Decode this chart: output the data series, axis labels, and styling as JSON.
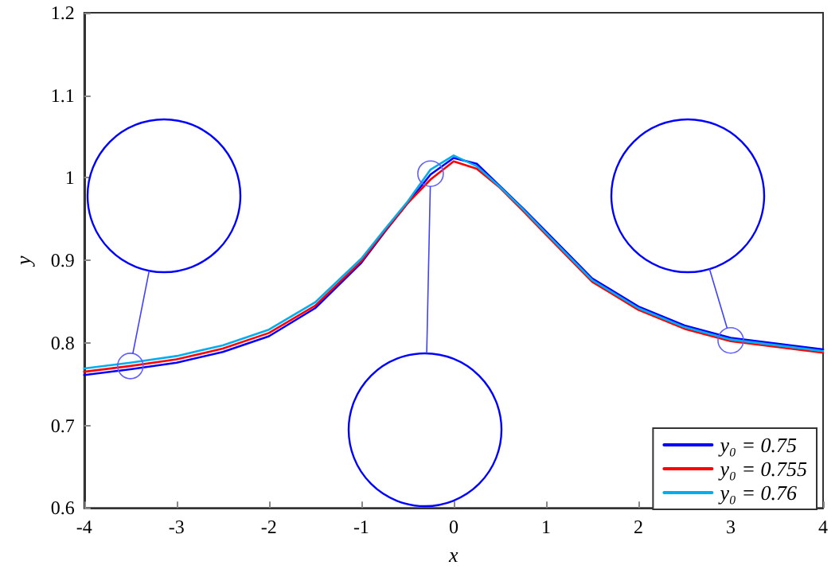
{
  "chart_data": {
    "type": "line",
    "xlabel": "x",
    "ylabel": "y",
    "x": [
      -4,
      -3.5,
      -3,
      -2.5,
      -2,
      -1.5,
      -1,
      -0.75,
      -0.5,
      -0.25,
      0,
      0.25,
      0.5,
      0.75,
      1,
      1.5,
      2,
      2.5,
      3,
      3.5,
      4
    ],
    "series": [
      {
        "name": "y₀ = 0.75",
        "color": "#0000ff",
        "values": [
          0.761,
          0.768,
          0.776,
          0.789,
          0.808,
          0.842,
          0.897,
          0.934,
          0.969,
          1.004,
          1.024,
          1.017,
          0.99,
          0.963,
          0.935,
          0.878,
          0.844,
          0.821,
          0.806,
          0.799,
          0.792
        ]
      },
      {
        "name": "y₀ = 0.755",
        "color": "#ff0000",
        "values": [
          0.765,
          0.772,
          0.78,
          0.793,
          0.812,
          0.845,
          0.899,
          0.935,
          0.969,
          0.998,
          1.02,
          1.011,
          0.988,
          0.96,
          0.931,
          0.874,
          0.84,
          0.817,
          0.802,
          0.795,
          0.788
        ]
      },
      {
        "name": "y₀ = 0.76",
        "color": "#00aeef",
        "values": [
          0.769,
          0.776,
          0.784,
          0.797,
          0.816,
          0.849,
          0.902,
          0.937,
          0.971,
          1.01,
          1.027,
          1.014,
          0.989,
          0.962,
          0.933,
          0.876,
          0.842,
          0.819,
          0.804,
          0.797,
          0.79
        ]
      }
    ],
    "xlim": [
      -4,
      4
    ],
    "xticks": [
      -4,
      -3,
      -2,
      -1,
      0,
      1,
      2,
      3,
      4
    ],
    "ylim": [
      0.6,
      1.2
    ],
    "yticks": [
      0.6,
      0.7,
      0.8,
      0.9,
      1,
      1.1,
      1.2
    ],
    "grid": false,
    "legend": "bottom right",
    "marker": "none",
    "line_style": "solid"
  }
}
